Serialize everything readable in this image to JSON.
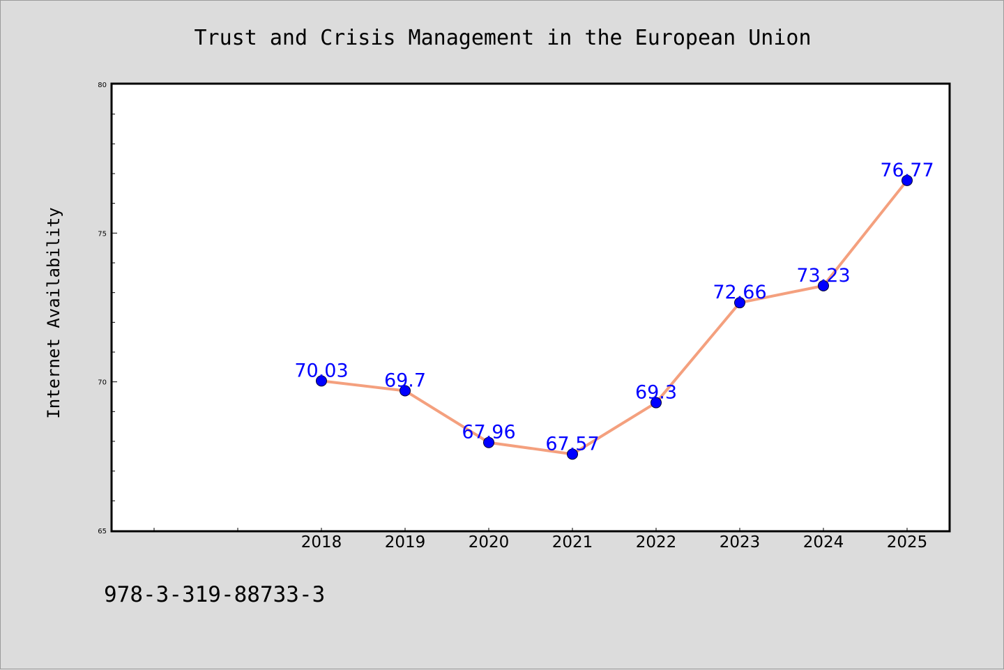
{
  "chart_data": {
    "type": "line",
    "title": "Trust and Crisis Management in the European Union",
    "xlabel": "",
    "ylabel": "Internet Availability",
    "categories": [
      "2018",
      "2019",
      "2020",
      "2021",
      "2022",
      "2023",
      "2024",
      "2025"
    ],
    "series": [
      {
        "values": [
          70.03,
          69.7,
          67.96,
          67.57,
          69.3,
          72.66,
          73.23,
          76.77
        ]
      }
    ],
    "data_labels": [
      "70.03",
      "69.7",
      "67.96",
      "67.57",
      "69.3",
      "72.66",
      "73.23",
      "76.77"
    ],
    "ylim": [
      65,
      80
    ],
    "yticks": [
      65,
      70,
      75,
      80
    ],
    "ytick_labels": [
      "65",
      "70",
      "75",
      "80"
    ],
    "grid": false,
    "colors": {
      "line": "#f4a07e",
      "marker": "#0000ff",
      "data_label": "#0000ff",
      "plot_background": "#ffffff",
      "figure_background": "#dcdcdc"
    }
  },
  "footer": {
    "code": "978-3-319-88733-3"
  }
}
